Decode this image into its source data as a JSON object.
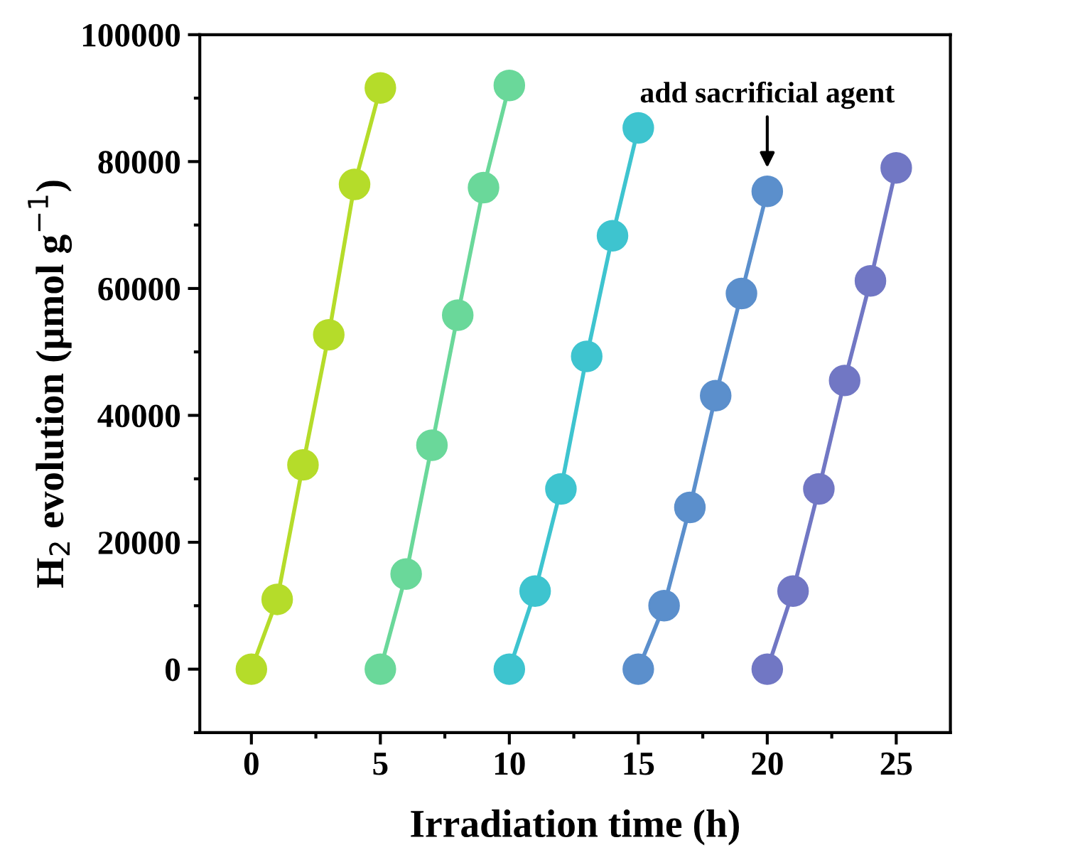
{
  "chart_data": {
    "type": "line",
    "xlabel": "Irradiation time (h)",
    "ylabel": "H$_{2}$ evolution (μmol g$^{−1}$)",
    "xlim": [
      -2,
      27.1
    ],
    "ylim": [
      -10000,
      100000
    ],
    "xticks": [
      0,
      5,
      10,
      15,
      20,
      25
    ],
    "yticks": [
      0,
      20000,
      40000,
      60000,
      80000,
      100000
    ],
    "marker": "circle",
    "line_style": "solid",
    "grid": false,
    "legend": false,
    "series": [
      {
        "color": "#b5dc2a",
        "x": [
          0,
          1,
          2,
          3,
          4,
          5
        ],
        "values": [
          0,
          11000,
          32200,
          52700,
          76400,
          91600
        ]
      },
      {
        "color": "#6ad89a",
        "x": [
          5,
          6,
          7,
          8,
          9,
          10
        ],
        "values": [
          0,
          15000,
          35300,
          55800,
          75900,
          92000
        ]
      },
      {
        "color": "#3ec4cf",
        "x": [
          10,
          11,
          12,
          13,
          14,
          15
        ],
        "values": [
          0,
          12300,
          28400,
          49300,
          68300,
          85300
        ]
      },
      {
        "color": "#5b8fcc",
        "x": [
          15,
          16,
          17,
          18,
          19,
          20
        ],
        "values": [
          0,
          10000,
          25500,
          43100,
          59200,
          75300
        ]
      },
      {
        "color": "#7177c4",
        "x": [
          20,
          21,
          22,
          23,
          24,
          25
        ],
        "values": [
          0,
          12300,
          28400,
          45500,
          61200,
          79000
        ]
      }
    ],
    "annotations": [
      {
        "text": "add sacrificial agent",
        "x": 20,
        "y": 75300
      }
    ]
  }
}
